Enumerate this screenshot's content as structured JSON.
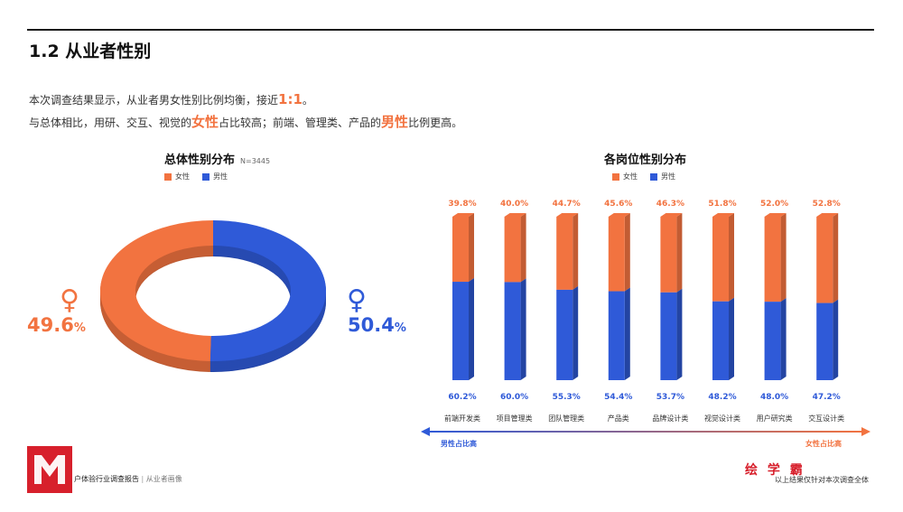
{
  "page": {
    "section_title": "1.2 从业者性别",
    "intro": {
      "line1_prefix": "本次调查结果显示，从业者男女性别比例均衡，接近",
      "line1_ratio": "1:1",
      "line1_suffix": "。",
      "line2_a": "与总体相比，用研、交互、视觉的",
      "line2_female": "女性",
      "line2_b": "占比较高；前端、管理类、产品的",
      "line2_male": "男性",
      "line2_c": "比例更高。"
    }
  },
  "legend": {
    "female": "女性",
    "male": "男性"
  },
  "colors": {
    "female": "#f27340",
    "male": "#2f5ad8"
  },
  "donut": {
    "title": "总体性别分布",
    "n_label": "N=3445",
    "female_value": "49.6",
    "male_value": "50.4",
    "pct_symbol": "%",
    "female_symbol": "♀",
    "male_symbol": "♀"
  },
  "bars": {
    "title": "各岗位性别分布",
    "arrow_left": "男性占比高",
    "arrow_right": "女性占比高"
  },
  "footer": {
    "report_name": "户体验行业调查报告",
    "separator": "|",
    "section": "从业者画像",
    "brand": "绘 学 霸",
    "note": "以上结果仅针对本次调查全体"
  },
  "chart_data": [
    {
      "type": "pie",
      "title": "总体性别分布",
      "subtitle": "N=3445",
      "categories": [
        "女性",
        "男性"
      ],
      "values": [
        49.6,
        50.4
      ]
    },
    {
      "type": "bar",
      "title": "各岗位性别分布",
      "stacked": true,
      "categories": [
        "前端开发类",
        "项目管理类",
        "团队管理类",
        "产品类",
        "品牌设计类",
        "视觉设计类",
        "用户研究类",
        "交互设计类"
      ],
      "series": [
        {
          "name": "女性",
          "values": [
            39.8,
            40.0,
            44.7,
            45.6,
            46.3,
            51.8,
            52.0,
            52.8
          ]
        },
        {
          "name": "男性",
          "values": [
            60.2,
            60.0,
            55.3,
            54.4,
            53.7,
            48.2,
            48.0,
            47.2
          ]
        }
      ],
      "ylim": [
        0,
        100
      ],
      "legend": "top",
      "grid": false
    }
  ]
}
